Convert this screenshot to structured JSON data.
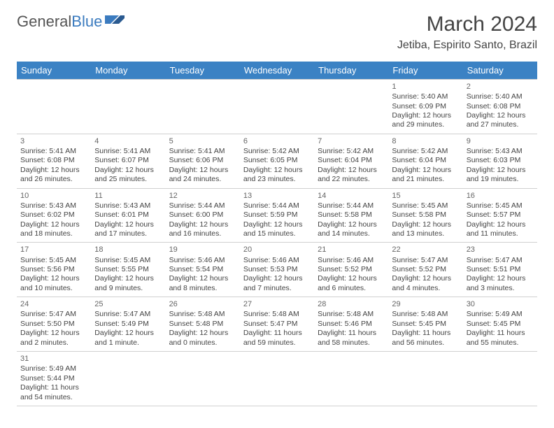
{
  "brand": {
    "part1": "General",
    "part2": "Blue"
  },
  "header": {
    "month_title": "March 2024",
    "location": "Jetiba, Espirito Santo, Brazil"
  },
  "colors": {
    "header_bg": "#3b82c4",
    "header_text": "#ffffff",
    "brand_accent": "#3b7bbf",
    "body_text": "#444444",
    "grid_line": "#d0d0d0",
    "page_bg": "#ffffff"
  },
  "weekdays": [
    "Sunday",
    "Monday",
    "Tuesday",
    "Wednesday",
    "Thursday",
    "Friday",
    "Saturday"
  ],
  "weeks": [
    [
      null,
      null,
      null,
      null,
      null,
      {
        "day": "1",
        "sunrise": "Sunrise: 5:40 AM",
        "sunset": "Sunset: 6:09 PM",
        "daylight": "Daylight: 12 hours and 29 minutes."
      },
      {
        "day": "2",
        "sunrise": "Sunrise: 5:40 AM",
        "sunset": "Sunset: 6:08 PM",
        "daylight": "Daylight: 12 hours and 27 minutes."
      }
    ],
    [
      {
        "day": "3",
        "sunrise": "Sunrise: 5:41 AM",
        "sunset": "Sunset: 6:08 PM",
        "daylight": "Daylight: 12 hours and 26 minutes."
      },
      {
        "day": "4",
        "sunrise": "Sunrise: 5:41 AM",
        "sunset": "Sunset: 6:07 PM",
        "daylight": "Daylight: 12 hours and 25 minutes."
      },
      {
        "day": "5",
        "sunrise": "Sunrise: 5:41 AM",
        "sunset": "Sunset: 6:06 PM",
        "daylight": "Daylight: 12 hours and 24 minutes."
      },
      {
        "day": "6",
        "sunrise": "Sunrise: 5:42 AM",
        "sunset": "Sunset: 6:05 PM",
        "daylight": "Daylight: 12 hours and 23 minutes."
      },
      {
        "day": "7",
        "sunrise": "Sunrise: 5:42 AM",
        "sunset": "Sunset: 6:04 PM",
        "daylight": "Daylight: 12 hours and 22 minutes."
      },
      {
        "day": "8",
        "sunrise": "Sunrise: 5:42 AM",
        "sunset": "Sunset: 6:04 PM",
        "daylight": "Daylight: 12 hours and 21 minutes."
      },
      {
        "day": "9",
        "sunrise": "Sunrise: 5:43 AM",
        "sunset": "Sunset: 6:03 PM",
        "daylight": "Daylight: 12 hours and 19 minutes."
      }
    ],
    [
      {
        "day": "10",
        "sunrise": "Sunrise: 5:43 AM",
        "sunset": "Sunset: 6:02 PM",
        "daylight": "Daylight: 12 hours and 18 minutes."
      },
      {
        "day": "11",
        "sunrise": "Sunrise: 5:43 AM",
        "sunset": "Sunset: 6:01 PM",
        "daylight": "Daylight: 12 hours and 17 minutes."
      },
      {
        "day": "12",
        "sunrise": "Sunrise: 5:44 AM",
        "sunset": "Sunset: 6:00 PM",
        "daylight": "Daylight: 12 hours and 16 minutes."
      },
      {
        "day": "13",
        "sunrise": "Sunrise: 5:44 AM",
        "sunset": "Sunset: 5:59 PM",
        "daylight": "Daylight: 12 hours and 15 minutes."
      },
      {
        "day": "14",
        "sunrise": "Sunrise: 5:44 AM",
        "sunset": "Sunset: 5:58 PM",
        "daylight": "Daylight: 12 hours and 14 minutes."
      },
      {
        "day": "15",
        "sunrise": "Sunrise: 5:45 AM",
        "sunset": "Sunset: 5:58 PM",
        "daylight": "Daylight: 12 hours and 13 minutes."
      },
      {
        "day": "16",
        "sunrise": "Sunrise: 5:45 AM",
        "sunset": "Sunset: 5:57 PM",
        "daylight": "Daylight: 12 hours and 11 minutes."
      }
    ],
    [
      {
        "day": "17",
        "sunrise": "Sunrise: 5:45 AM",
        "sunset": "Sunset: 5:56 PM",
        "daylight": "Daylight: 12 hours and 10 minutes."
      },
      {
        "day": "18",
        "sunrise": "Sunrise: 5:45 AM",
        "sunset": "Sunset: 5:55 PM",
        "daylight": "Daylight: 12 hours and 9 minutes."
      },
      {
        "day": "19",
        "sunrise": "Sunrise: 5:46 AM",
        "sunset": "Sunset: 5:54 PM",
        "daylight": "Daylight: 12 hours and 8 minutes."
      },
      {
        "day": "20",
        "sunrise": "Sunrise: 5:46 AM",
        "sunset": "Sunset: 5:53 PM",
        "daylight": "Daylight: 12 hours and 7 minutes."
      },
      {
        "day": "21",
        "sunrise": "Sunrise: 5:46 AM",
        "sunset": "Sunset: 5:52 PM",
        "daylight": "Daylight: 12 hours and 6 minutes."
      },
      {
        "day": "22",
        "sunrise": "Sunrise: 5:47 AM",
        "sunset": "Sunset: 5:52 PM",
        "daylight": "Daylight: 12 hours and 4 minutes."
      },
      {
        "day": "23",
        "sunrise": "Sunrise: 5:47 AM",
        "sunset": "Sunset: 5:51 PM",
        "daylight": "Daylight: 12 hours and 3 minutes."
      }
    ],
    [
      {
        "day": "24",
        "sunrise": "Sunrise: 5:47 AM",
        "sunset": "Sunset: 5:50 PM",
        "daylight": "Daylight: 12 hours and 2 minutes."
      },
      {
        "day": "25",
        "sunrise": "Sunrise: 5:47 AM",
        "sunset": "Sunset: 5:49 PM",
        "daylight": "Daylight: 12 hours and 1 minute."
      },
      {
        "day": "26",
        "sunrise": "Sunrise: 5:48 AM",
        "sunset": "Sunset: 5:48 PM",
        "daylight": "Daylight: 12 hours and 0 minutes."
      },
      {
        "day": "27",
        "sunrise": "Sunrise: 5:48 AM",
        "sunset": "Sunset: 5:47 PM",
        "daylight": "Daylight: 11 hours and 59 minutes."
      },
      {
        "day": "28",
        "sunrise": "Sunrise: 5:48 AM",
        "sunset": "Sunset: 5:46 PM",
        "daylight": "Daylight: 11 hours and 58 minutes."
      },
      {
        "day": "29",
        "sunrise": "Sunrise: 5:48 AM",
        "sunset": "Sunset: 5:45 PM",
        "daylight": "Daylight: 11 hours and 56 minutes."
      },
      {
        "day": "30",
        "sunrise": "Sunrise: 5:49 AM",
        "sunset": "Sunset: 5:45 PM",
        "daylight": "Daylight: 11 hours and 55 minutes."
      }
    ],
    [
      {
        "day": "31",
        "sunrise": "Sunrise: 5:49 AM",
        "sunset": "Sunset: 5:44 PM",
        "daylight": "Daylight: 11 hours and 54 minutes."
      },
      null,
      null,
      null,
      null,
      null,
      null
    ]
  ]
}
